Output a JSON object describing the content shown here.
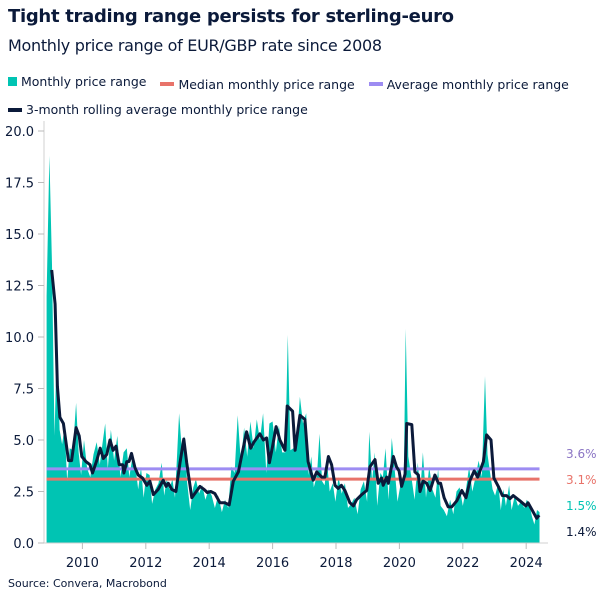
{
  "title": "Tight trading range persists for sterling-euro",
  "subtitle": "Monthly price range of EUR/GBP rate since 2008",
  "source": "Source: Convera, Macrobond",
  "colors": {
    "monthly": "#00c4b3",
    "median": "#e8736a",
    "average": "#9d8cf2",
    "rolling": "#0b1a3a",
    "average_label": "#8a74c4"
  },
  "chart_data": {
    "type": "area",
    "xlabel": "",
    "ylabel": "",
    "ylim": [
      0,
      20
    ],
    "xlim": [
      2008,
      2024.8
    ],
    "grid": false,
    "legend_position": "top",
    "y_ticks": [
      "0.0",
      "2.5",
      "5.0",
      "7.5",
      "10.0",
      "12.5",
      "15.0",
      "17.5",
      "20.0"
    ],
    "x_ticks": [
      "2010",
      "2012",
      "2014",
      "2016",
      "2018",
      "2020",
      "2022",
      "2024"
    ],
    "series": [
      {
        "name": "Monthly price range",
        "type": "area",
        "points": [
          [
            2008.87,
            12
          ],
          [
            2008.96,
            18.8
          ],
          [
            2009.04,
            13.5
          ],
          [
            2009.12,
            5.2
          ],
          [
            2009.2,
            10
          ],
          [
            2009.28,
            5.5
          ],
          [
            2009.36,
            4.8
          ],
          [
            2009.44,
            5.6
          ],
          [
            2009.52,
            3.0
          ],
          [
            2009.6,
            4.6
          ],
          [
            2009.7,
            4.5
          ],
          [
            2009.8,
            6.8
          ],
          [
            2009.88,
            4.4
          ],
          [
            2009.96,
            3.3
          ],
          [
            2010.05,
            5.0
          ],
          [
            2010.15,
            3.6
          ],
          [
            2010.25,
            3.2
          ],
          [
            2010.35,
            4.3
          ],
          [
            2010.45,
            4.9
          ],
          [
            2010.55,
            3.8
          ],
          [
            2010.63,
            4.8
          ],
          [
            2010.72,
            5.8
          ],
          [
            2010.8,
            3.6
          ],
          [
            2010.9,
            5.5
          ],
          [
            2011.0,
            4.0
          ],
          [
            2011.1,
            5.2
          ],
          [
            2011.2,
            3.2
          ],
          [
            2011.3,
            4.4
          ],
          [
            2011.4,
            4.6
          ],
          [
            2011.48,
            3.2
          ],
          [
            2011.58,
            4.2
          ],
          [
            2011.68,
            3.6
          ],
          [
            2011.76,
            2.6
          ],
          [
            2011.85,
            3.7
          ],
          [
            2011.93,
            2.2
          ],
          [
            2012.02,
            3.4
          ],
          [
            2012.12,
            3.3
          ],
          [
            2012.2,
            1.9
          ],
          [
            2012.3,
            2.6
          ],
          [
            2012.4,
            2.9
          ],
          [
            2012.5,
            3.9
          ],
          [
            2012.58,
            2.3
          ],
          [
            2012.66,
            3.1
          ],
          [
            2012.74,
            2.6
          ],
          [
            2012.84,
            3.1
          ],
          [
            2012.92,
            2.2
          ],
          [
            2013.05,
            6.3
          ],
          [
            2013.15,
            4.2
          ],
          [
            2013.22,
            5.2
          ],
          [
            2013.3,
            3.0
          ],
          [
            2013.4,
            1.6
          ],
          [
            2013.5,
            2.7
          ],
          [
            2013.58,
            3.1
          ],
          [
            2013.68,
            2.4
          ],
          [
            2013.78,
            2.8
          ],
          [
            2013.88,
            2.1
          ],
          [
            2013.98,
            2.6
          ],
          [
            2014.08,
            2.3
          ],
          [
            2014.18,
            1.7
          ],
          [
            2014.28,
            2.3
          ],
          [
            2014.4,
            1.5
          ],
          [
            2014.5,
            2.1
          ],
          [
            2014.6,
            1.7
          ],
          [
            2014.7,
            3.7
          ],
          [
            2014.8,
            3.4
          ],
          [
            2014.9,
            6.2
          ],
          [
            2015.0,
            3.9
          ],
          [
            2015.1,
            5.6
          ],
          [
            2015.2,
            4.2
          ],
          [
            2015.3,
            5.9
          ],
          [
            2015.4,
            4.6
          ],
          [
            2015.5,
            6.0
          ],
          [
            2015.6,
            5.0
          ],
          [
            2015.7,
            6.3
          ],
          [
            2015.8,
            3.4
          ],
          [
            2015.9,
            5.8
          ],
          [
            2016.0,
            5.9
          ],
          [
            2016.1,
            4.4
          ],
          [
            2016.2,
            5.7
          ],
          [
            2016.3,
            4.4
          ],
          [
            2016.4,
            4.4
          ],
          [
            2016.48,
            10.1
          ],
          [
            2016.56,
            4.5
          ],
          [
            2016.66,
            4.6
          ],
          [
            2016.76,
            4.8
          ],
          [
            2016.86,
            7.1
          ],
          [
            2016.96,
            5.8
          ],
          [
            2017.06,
            6.3
          ],
          [
            2017.14,
            3.3
          ],
          [
            2017.22,
            4.2
          ],
          [
            2017.3,
            2.7
          ],
          [
            2017.4,
            3.3
          ],
          [
            2017.48,
            5.3
          ],
          [
            2017.56,
            3.0
          ],
          [
            2017.64,
            2.8
          ],
          [
            2017.72,
            3.9
          ],
          [
            2017.8,
            2.5
          ],
          [
            2017.9,
            2.9
          ],
          [
            2017.98,
            2.0
          ],
          [
            2018.08,
            3.2
          ],
          [
            2018.18,
            2.4
          ],
          [
            2018.28,
            2.9
          ],
          [
            2018.38,
            1.7
          ],
          [
            2018.48,
            1.9
          ],
          [
            2018.58,
            2.2
          ],
          [
            2018.68,
            1.4
          ],
          [
            2018.78,
            2.6
          ],
          [
            2018.88,
            3.0
          ],
          [
            2018.98,
            2.0
          ],
          [
            2019.05,
            5.4
          ],
          [
            2019.14,
            3.0
          ],
          [
            2019.22,
            4.4
          ],
          [
            2019.3,
            1.8
          ],
          [
            2019.4,
            3.4
          ],
          [
            2019.48,
            3.2
          ],
          [
            2019.56,
            4.6
          ],
          [
            2019.66,
            2.1
          ],
          [
            2019.76,
            5.1
          ],
          [
            2019.86,
            3.4
          ],
          [
            2019.94,
            2.0
          ],
          [
            2020.04,
            2.9
          ],
          [
            2020.14,
            3.2
          ],
          [
            2020.2,
            10.4
          ],
          [
            2020.28,
            4.2
          ],
          [
            2020.38,
            3.2
          ],
          [
            2020.48,
            2.1
          ],
          [
            2020.58,
            3.9
          ],
          [
            2020.66,
            2.5
          ],
          [
            2020.74,
            4.4
          ],
          [
            2020.84,
            2.2
          ],
          [
            2020.94,
            3.7
          ],
          [
            2021.04,
            2.6
          ],
          [
            2021.14,
            2.2
          ],
          [
            2021.22,
            3.6
          ],
          [
            2021.3,
            1.8
          ],
          [
            2021.4,
            1.6
          ],
          [
            2021.5,
            1.3
          ],
          [
            2021.6,
            2.1
          ],
          [
            2021.7,
            1.4
          ],
          [
            2021.8,
            2.5
          ],
          [
            2021.9,
            2.7
          ],
          [
            2022.0,
            1.8
          ],
          [
            2022.1,
            2.6
          ],
          [
            2022.2,
            3.7
          ],
          [
            2022.3,
            2.5
          ],
          [
            2022.4,
            3.2
          ],
          [
            2022.5,
            4.0
          ],
          [
            2022.6,
            3.2
          ],
          [
            2022.7,
            8.1
          ],
          [
            2022.78,
            4.3
          ],
          [
            2022.86,
            3.4
          ],
          [
            2022.94,
            2.6
          ],
          [
            2023.02,
            2.3
          ],
          [
            2023.12,
            2.9
          ],
          [
            2023.2,
            1.6
          ],
          [
            2023.28,
            2.6
          ],
          [
            2023.36,
            1.8
          ],
          [
            2023.46,
            2.8
          ],
          [
            2023.54,
            1.6
          ],
          [
            2023.64,
            2.3
          ],
          [
            2023.74,
            1.8
          ],
          [
            2023.84,
            2.0
          ],
          [
            2023.94,
            1.7
          ],
          [
            2024.02,
            2.1
          ],
          [
            2024.1,
            1.9
          ],
          [
            2024.18,
            1.3
          ],
          [
            2024.26,
            0.9
          ],
          [
            2024.34,
            1.6
          ],
          [
            2024.42,
            1.5
          ]
        ],
        "end_label": "1.5%"
      },
      {
        "name": "Median monthly price range",
        "type": "hline",
        "value": 3.1,
        "end_label": "3.1%"
      },
      {
        "name": "Average monthly price range",
        "type": "hline",
        "value": 3.6,
        "end_label": "3.6%"
      },
      {
        "name": "3-month rolling average monthly price range",
        "type": "line",
        "points": [
          [
            2009.03,
            13.25
          ],
          [
            2009.14,
            11.6
          ],
          [
            2009.21,
            7.6
          ],
          [
            2009.29,
            6.1
          ],
          [
            2009.4,
            5.8
          ],
          [
            2009.56,
            4.0
          ],
          [
            2009.66,
            4.0
          ],
          [
            2009.8,
            5.6
          ],
          [
            2009.9,
            5.2
          ],
          [
            2009.98,
            4.2
          ],
          [
            2010.11,
            3.95
          ],
          [
            2010.24,
            3.8
          ],
          [
            2010.32,
            3.4
          ],
          [
            2010.45,
            4.0
          ],
          [
            2010.56,
            4.6
          ],
          [
            2010.66,
            4.1
          ],
          [
            2010.77,
            4.3
          ],
          [
            2010.87,
            5.0
          ],
          [
            2010.97,
            4.5
          ],
          [
            2011.06,
            4.7
          ],
          [
            2011.16,
            3.8
          ],
          [
            2011.27,
            3.8
          ],
          [
            2011.31,
            3.4
          ],
          [
            2011.4,
            3.95
          ],
          [
            2011.47,
            3.95
          ],
          [
            2011.55,
            4.35
          ],
          [
            2011.66,
            3.65
          ],
          [
            2011.76,
            3.3
          ],
          [
            2011.9,
            3.15
          ],
          [
            2012.03,
            2.8
          ],
          [
            2012.13,
            3.0
          ],
          [
            2012.24,
            2.35
          ],
          [
            2012.39,
            2.6
          ],
          [
            2012.55,
            3.05
          ],
          [
            2012.64,
            2.75
          ],
          [
            2012.71,
            2.9
          ],
          [
            2012.82,
            2.6
          ],
          [
            2012.95,
            2.5
          ],
          [
            2013.08,
            3.9
          ],
          [
            2013.2,
            5.05
          ],
          [
            2013.29,
            3.9
          ],
          [
            2013.45,
            2.2
          ],
          [
            2013.71,
            2.75
          ],
          [
            2013.84,
            2.6
          ],
          [
            2013.94,
            2.45
          ],
          [
            2014.05,
            2.5
          ],
          [
            2014.18,
            2.4
          ],
          [
            2014.34,
            1.95
          ],
          [
            2014.5,
            1.95
          ],
          [
            2014.63,
            1.85
          ],
          [
            2014.76,
            3.0
          ],
          [
            2014.92,
            3.45
          ],
          [
            2015.02,
            4.2
          ],
          [
            2015.18,
            5.4
          ],
          [
            2015.31,
            4.6
          ],
          [
            2015.41,
            4.9
          ],
          [
            2015.6,
            5.3
          ],
          [
            2015.71,
            5.0
          ],
          [
            2015.81,
            5.1
          ],
          [
            2015.9,
            3.9
          ],
          [
            2016.0,
            4.7
          ],
          [
            2016.11,
            5.65
          ],
          [
            2016.23,
            5.0
          ],
          [
            2016.39,
            4.5
          ],
          [
            2016.46,
            6.65
          ],
          [
            2016.63,
            6.4
          ],
          [
            2016.71,
            4.5
          ],
          [
            2016.86,
            6.2
          ],
          [
            2017.02,
            6.0
          ],
          [
            2017.12,
            3.95
          ],
          [
            2017.28,
            3.05
          ],
          [
            2017.39,
            3.45
          ],
          [
            2017.55,
            3.2
          ],
          [
            2017.65,
            3.2
          ],
          [
            2017.76,
            4.2
          ],
          [
            2017.86,
            3.8
          ],
          [
            2017.97,
            2.8
          ],
          [
            2018.07,
            2.65
          ],
          [
            2018.17,
            2.8
          ],
          [
            2018.28,
            2.55
          ],
          [
            2018.44,
            1.95
          ],
          [
            2018.55,
            1.8
          ],
          [
            2018.65,
            2.1
          ],
          [
            2018.81,
            2.35
          ],
          [
            2018.97,
            2.55
          ],
          [
            2019.07,
            3.7
          ],
          [
            2019.23,
            4.05
          ],
          [
            2019.33,
            2.9
          ],
          [
            2019.44,
            3.15
          ],
          [
            2019.49,
            2.8
          ],
          [
            2019.6,
            3.2
          ],
          [
            2019.65,
            2.9
          ],
          [
            2019.81,
            4.2
          ],
          [
            2019.91,
            3.7
          ],
          [
            2019.99,
            3.5
          ],
          [
            2020.07,
            2.75
          ],
          [
            2020.18,
            3.35
          ],
          [
            2020.23,
            5.8
          ],
          [
            2020.39,
            5.75
          ],
          [
            2020.49,
            3.45
          ],
          [
            2020.6,
            3.3
          ],
          [
            2020.65,
            2.5
          ],
          [
            2020.75,
            3.0
          ],
          [
            2020.86,
            2.9
          ],
          [
            2020.97,
            2.55
          ],
          [
            2021.12,
            3.3
          ],
          [
            2021.23,
            2.9
          ],
          [
            2021.3,
            2.9
          ],
          [
            2021.41,
            2.2
          ],
          [
            2021.54,
            1.75
          ],
          [
            2021.65,
            1.75
          ],
          [
            2021.81,
            2.05
          ],
          [
            2021.97,
            2.55
          ],
          [
            2022.1,
            2.2
          ],
          [
            2022.23,
            3.05
          ],
          [
            2022.36,
            3.5
          ],
          [
            2022.47,
            3.2
          ],
          [
            2022.65,
            3.95
          ],
          [
            2022.75,
            5.25
          ],
          [
            2022.89,
            5.0
          ],
          [
            2022.98,
            3.15
          ],
          [
            2023.12,
            2.75
          ],
          [
            2023.25,
            2.3
          ],
          [
            2023.38,
            2.3
          ],
          [
            2023.49,
            2.15
          ],
          [
            2023.59,
            2.3
          ],
          [
            2023.8,
            2.05
          ],
          [
            2023.99,
            1.8
          ],
          [
            2024.06,
            1.95
          ],
          [
            2024.33,
            1.2
          ],
          [
            2024.41,
            1.35
          ]
        ],
        "end_label": "1.4%"
      }
    ]
  }
}
